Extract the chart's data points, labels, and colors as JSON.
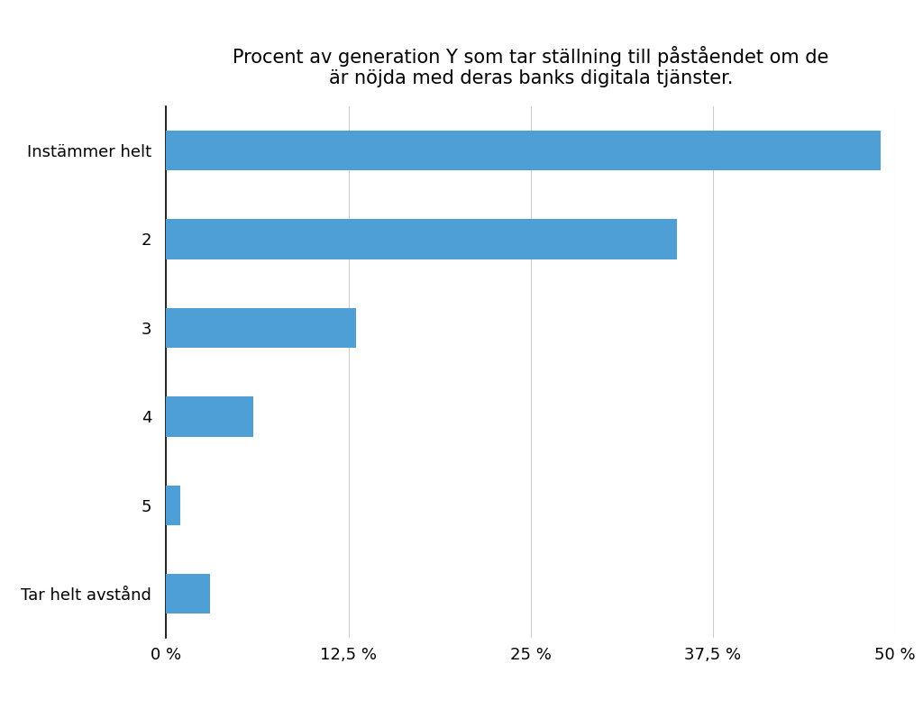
{
  "title": "Procent av generation Y som tar ställning till påståendet om de\när nöjda med deras banks digitala tjänster.",
  "categories": [
    "Instämmer helt",
    "2",
    "3",
    "4",
    "5",
    "Tar helt avstånd"
  ],
  "values": [
    49.0,
    35.0,
    13.0,
    6.0,
    1.0,
    3.0
  ],
  "bar_color": "#4D9FD6",
  "xlim": [
    0,
    50
  ],
  "xticks": [
    0,
    12.5,
    25,
    37.5,
    50
  ],
  "xtick_labels": [
    "0 %",
    "12,5 %",
    "25 %",
    "37,5 %",
    "50 %"
  ],
  "background_color": "#FFFFFF",
  "title_fontsize": 15,
  "label_fontsize": 13,
  "tick_fontsize": 13,
  "bar_height": 0.45
}
